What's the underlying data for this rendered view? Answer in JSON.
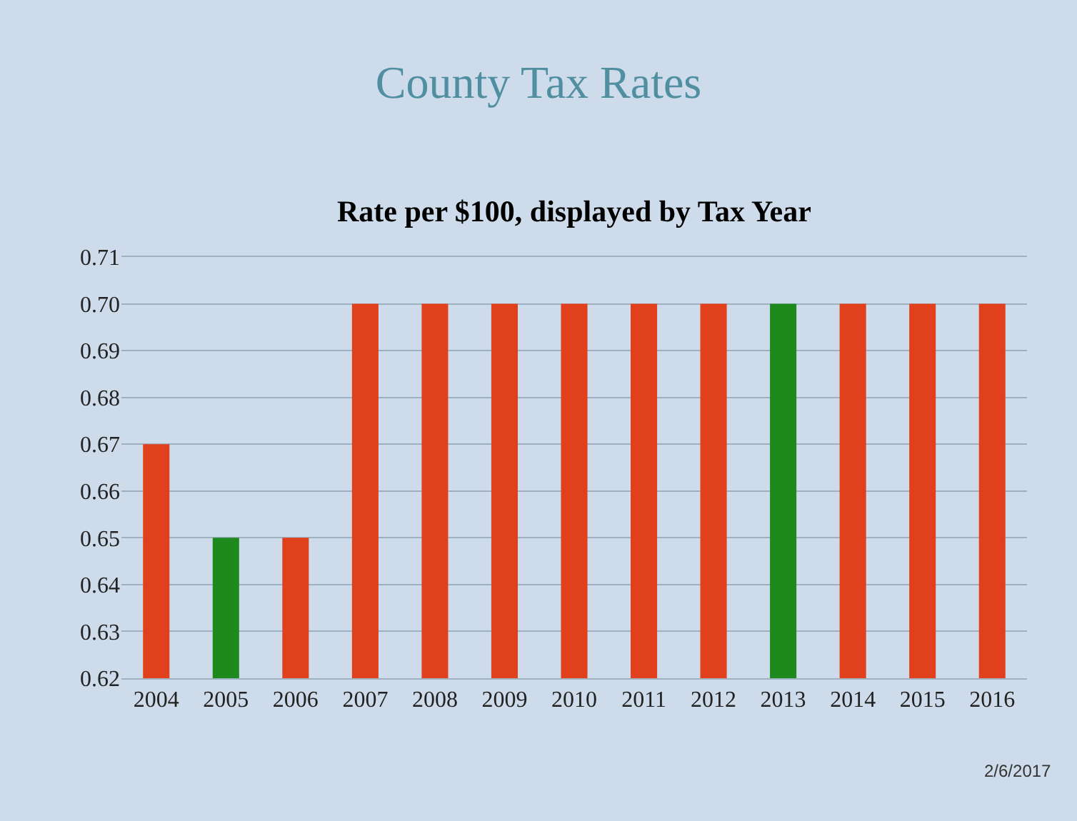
{
  "chart_data": {
    "type": "bar",
    "title": "County Tax Rates",
    "subtitle": "Rate per $100, displayed by Tax Year",
    "categories": [
      "2004",
      "2005",
      "2006",
      "2007",
      "2008",
      "2009",
      "2010",
      "2011",
      "2012",
      "2013",
      "2014",
      "2015",
      "2016"
    ],
    "values": [
      0.67,
      0.65,
      0.65,
      0.7,
      0.7,
      0.7,
      0.7,
      0.7,
      0.7,
      0.7,
      0.7,
      0.7,
      0.7
    ],
    "colors": [
      "#e0401c",
      "#1e8a1e",
      "#e0401c",
      "#e0401c",
      "#e0401c",
      "#e0401c",
      "#e0401c",
      "#e0401c",
      "#e0401c",
      "#1e8a1e",
      "#e0401c",
      "#e0401c",
      "#e0401c"
    ],
    "ylim": [
      0.62,
      0.71
    ],
    "yticks": [
      0.62,
      0.63,
      0.64,
      0.65,
      0.66,
      0.67,
      0.68,
      0.69,
      {
        "value": 0.7,
        "label": "0.70"
      },
      0.71
    ],
    "grid": "y",
    "annotations": [
      "2/6/2017"
    ]
  }
}
